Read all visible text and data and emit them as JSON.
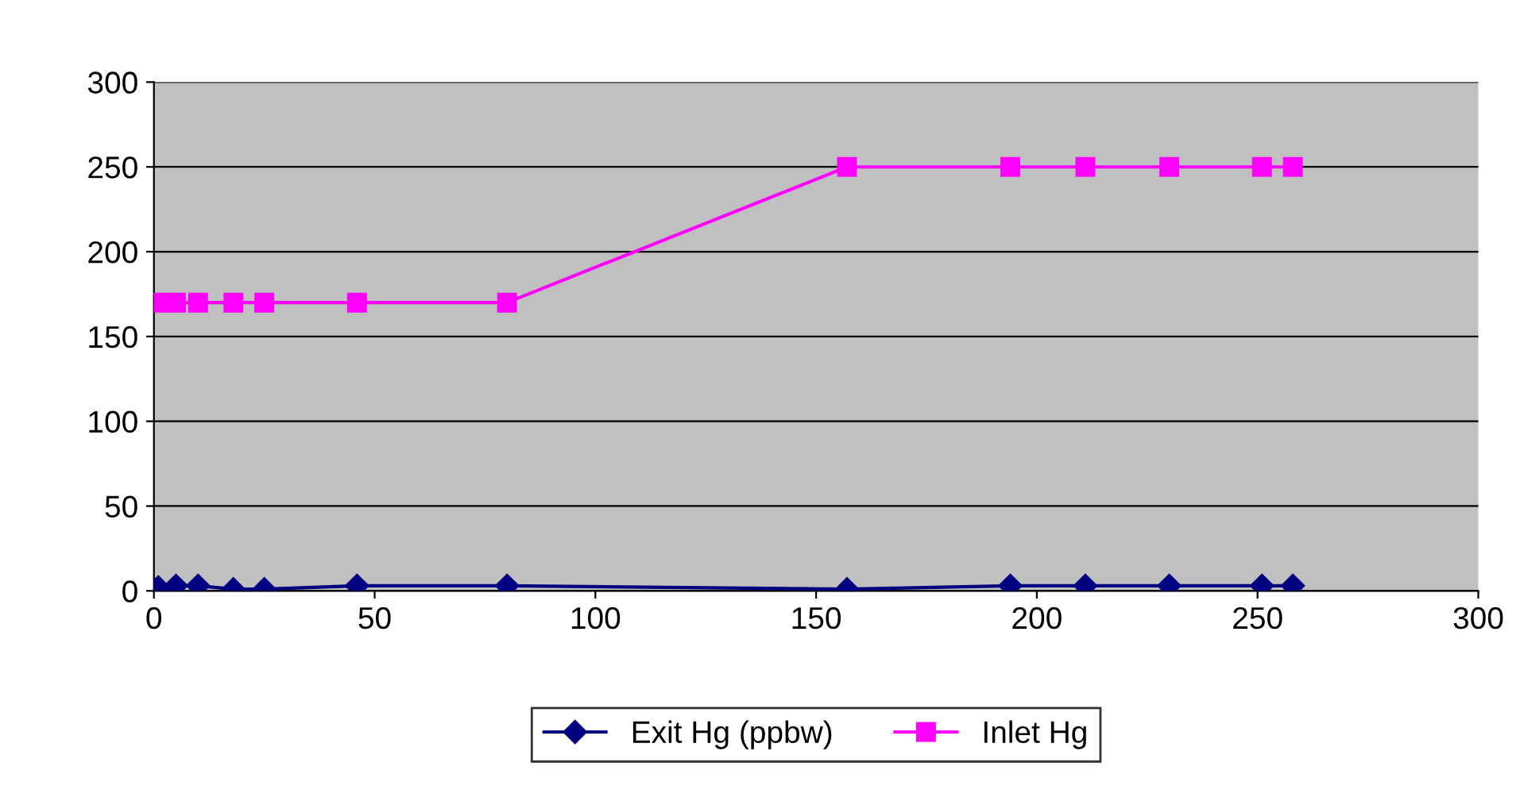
{
  "chart_data": {
    "type": "line",
    "x": [
      1,
      5,
      10,
      18,
      25,
      46,
      80,
      157,
      194,
      211,
      230,
      251,
      258
    ],
    "series": [
      {
        "name": "Exit Hg (ppbw)",
        "color": "#000080",
        "marker": "diamond",
        "values": [
          2,
          3,
          3,
          1,
          1,
          3,
          3,
          1,
          3,
          3,
          3,
          3,
          3
        ]
      },
      {
        "name": "Inlet Hg",
        "color": "#ff00ff",
        "marker": "square",
        "values": [
          170,
          170,
          170,
          170,
          170,
          170,
          170,
          250,
          250,
          250,
          250,
          250,
          250
        ]
      }
    ],
    "xlim": [
      0,
      300
    ],
    "xticks": [
      0,
      50,
      100,
      150,
      200,
      250,
      300
    ],
    "ylim": [
      0,
      300
    ],
    "yticks": [
      0,
      50,
      100,
      150,
      200,
      250,
      300
    ],
    "grid": "y",
    "legend": "bottom",
    "line_style": "solid"
  }
}
